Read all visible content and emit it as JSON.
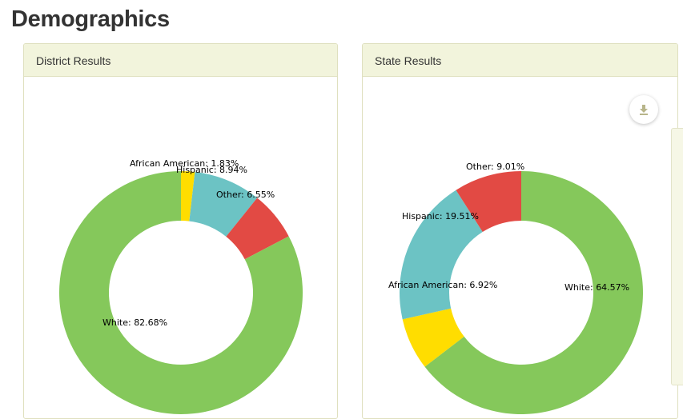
{
  "page": {
    "title": "Demographics"
  },
  "chart_data": [
    {
      "type": "pie",
      "title": "District Results",
      "slices": [
        {
          "name": "African American",
          "value": 1.83,
          "label": "African American: 1.83%",
          "color": "#ffdd00"
        },
        {
          "name": "Hispanic",
          "value": 8.94,
          "label": "Hispanic: 8.94%",
          "color": "#6cc3c4"
        },
        {
          "name": "Other",
          "value": 6.55,
          "label": "Other: 6.55%",
          "color": "#e24a44"
        },
        {
          "name": "White",
          "value": 82.68,
          "label": "White: 82.68%",
          "color": "#85c85b"
        }
      ]
    },
    {
      "type": "pie",
      "title": "State Results",
      "slices": [
        {
          "name": "White",
          "value": 64.57,
          "label": "White: 64.57%",
          "color": "#85c85b"
        },
        {
          "name": "African American",
          "value": 6.92,
          "label": "African American: 6.92%",
          "color": "#ffdd00"
        },
        {
          "name": "Hispanic",
          "value": 19.51,
          "label": "Hispanic: 19.51%",
          "color": "#6cc3c4"
        },
        {
          "name": "Other",
          "value": 9.01,
          "label": "Other: 9.01%",
          "color": "#e24a44"
        }
      ]
    }
  ],
  "icons": {
    "download": "download-icon"
  }
}
